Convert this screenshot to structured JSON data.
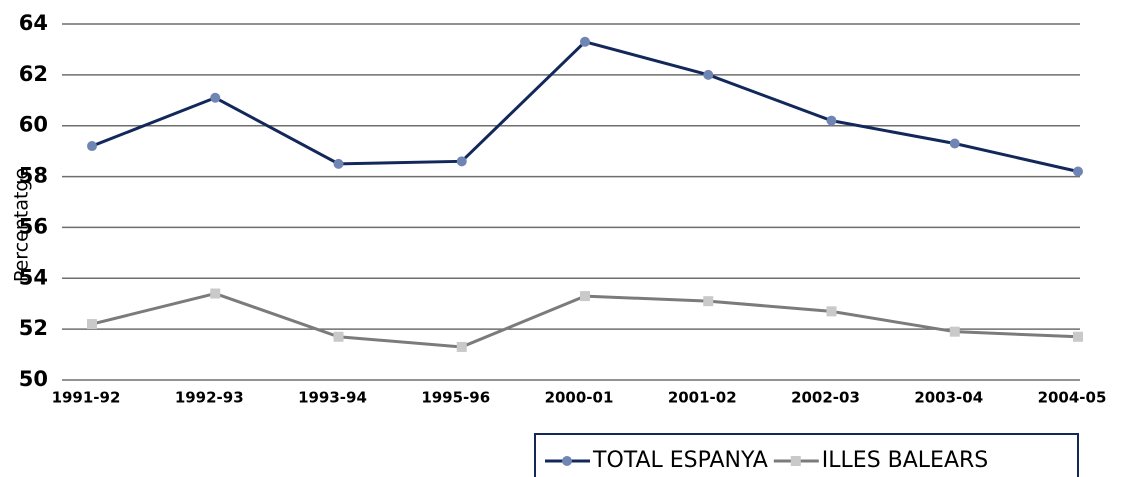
{
  "chart_data": {
    "type": "line",
    "y_label": "Percentatge",
    "categories": [
      "1991-92",
      "1992-93",
      "1993-94",
      "1995-96",
      "2000-01",
      "2001-02",
      "2002-03",
      "2003-04",
      "2004-05"
    ],
    "series": [
      {
        "name": "TOTAL ESPANYA",
        "color": "#13285a",
        "marker_color": "#6f86b4",
        "marker": "circle",
        "values": [
          59.2,
          61.1,
          58.5,
          58.6,
          63.3,
          62.0,
          60.2,
          59.3,
          58.2
        ]
      },
      {
        "name": "ILLES BALEARS",
        "color": "#7b7b7b",
        "marker_color": "#c9c9c9",
        "marker": "square",
        "values": [
          52.2,
          53.4,
          51.7,
          51.3,
          53.3,
          53.1,
          52.7,
          51.9,
          51.7
        ]
      }
    ],
    "ylim": [
      50,
      64
    ],
    "yticks": [
      50,
      52,
      54,
      56,
      58,
      60,
      62,
      64
    ],
    "grid": true
  }
}
